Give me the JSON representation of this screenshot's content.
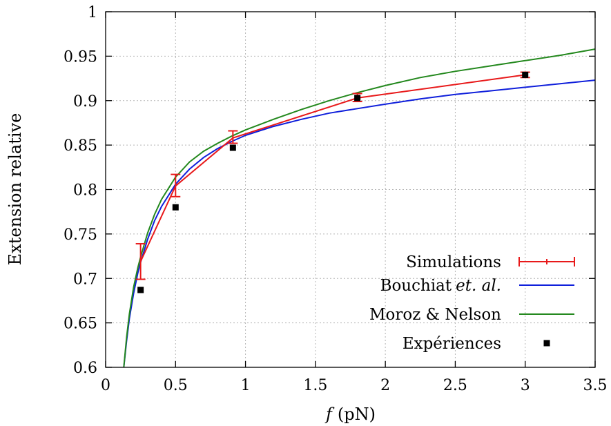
{
  "chart_data": {
    "type": "line",
    "xlabel_var": "f",
    "xlabel_unit": "(pN)",
    "ylabel": "Extension relative",
    "xlim": [
      0,
      3.5
    ],
    "ylim": [
      0.6,
      1
    ],
    "grid": true,
    "legend_position": "bottom-right",
    "x_ticks": [
      "0",
      "0.5",
      "1",
      "1.5",
      "2",
      "2.5",
      "3",
      "3.5"
    ],
    "y_ticks": [
      "0.6",
      "0.65",
      "0.7",
      "0.75",
      "0.8",
      "0.85",
      "0.9",
      "0.95",
      "1"
    ],
    "series": [
      {
        "name": "Simulations",
        "kind": "line-errorbar",
        "color": "#e8191a",
        "x": [
          0.25,
          0.5,
          0.91,
          1.8,
          3.0
        ],
        "y": [
          0.719,
          0.804,
          0.858,
          0.903,
          0.929
        ],
        "yerr_low": [
          0.699,
          0.792,
          0.852,
          0.899,
          0.926
        ],
        "yerr_high": [
          0.739,
          0.817,
          0.866,
          0.908,
          0.932
        ]
      },
      {
        "name": "Bouchiat",
        "name_suffix": "et. al.",
        "kind": "curve",
        "color": "#0f1fdb",
        "x": [
          0.13,
          0.15,
          0.17,
          0.2,
          0.23,
          0.25,
          0.3,
          0.35,
          0.4,
          0.5,
          0.6,
          0.7,
          0.8,
          0.9,
          1.0,
          1.2,
          1.4,
          1.6,
          1.8,
          2.0,
          2.25,
          2.5,
          2.75,
          3.0,
          3.25,
          3.5
        ],
        "y": [
          0.6,
          0.63,
          0.655,
          0.683,
          0.706,
          0.718,
          0.744,
          0.765,
          0.781,
          0.806,
          0.823,
          0.836,
          0.846,
          0.854,
          0.861,
          0.871,
          0.879,
          0.886,
          0.891,
          0.896,
          0.902,
          0.907,
          0.911,
          0.915,
          0.919,
          0.923
        ]
      },
      {
        "name": "Moroz & Nelson",
        "kind": "curve",
        "color": "#23881d",
        "x": [
          0.13,
          0.15,
          0.17,
          0.2,
          0.23,
          0.25,
          0.3,
          0.35,
          0.4,
          0.5,
          0.6,
          0.7,
          0.8,
          0.9,
          1.0,
          1.2,
          1.4,
          1.6,
          1.8,
          2.0,
          2.25,
          2.5,
          2.75,
          3.0,
          3.25,
          3.5
        ],
        "y": [
          0.6,
          0.634,
          0.66,
          0.69,
          0.712,
          0.724,
          0.751,
          0.772,
          0.789,
          0.814,
          0.831,
          0.843,
          0.852,
          0.86,
          0.867,
          0.879,
          0.89,
          0.9,
          0.909,
          0.917,
          0.926,
          0.933,
          0.939,
          0.945,
          0.951,
          0.958
        ]
      },
      {
        "name": "Expériences",
        "kind": "scatter",
        "color": "#000000",
        "x": [
          0.25,
          0.5,
          0.91,
          1.8,
          3.0
        ],
        "y": [
          0.687,
          0.78,
          0.847,
          0.903,
          0.929
        ]
      }
    ]
  }
}
